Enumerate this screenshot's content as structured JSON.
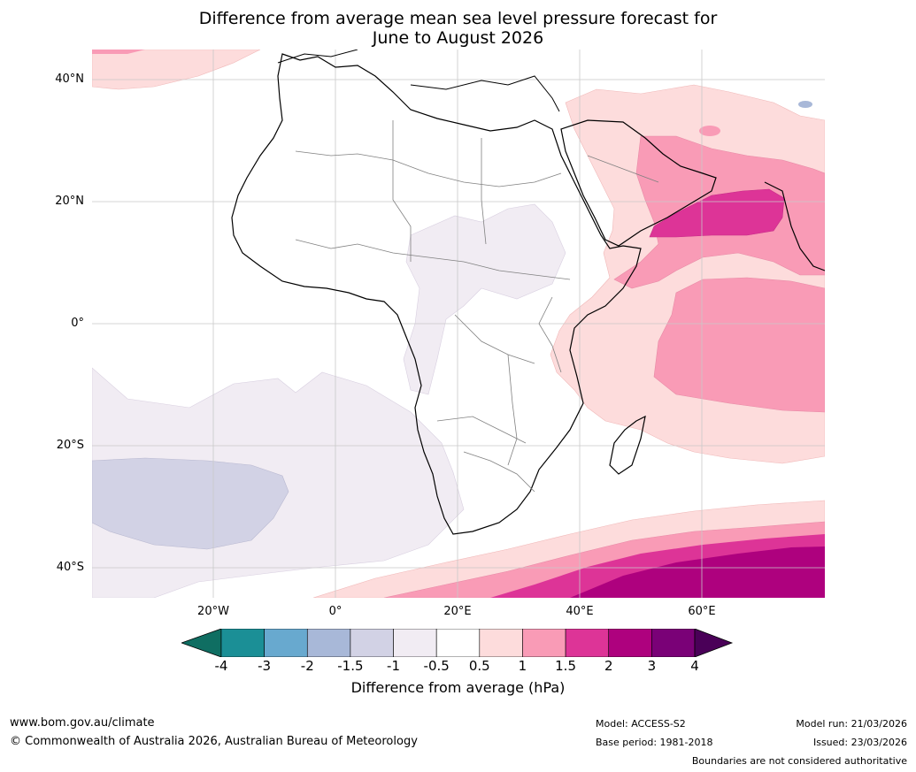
{
  "title": {
    "line1": "Difference from average mean sea level pressure forecast for",
    "line2": "June to August 2026"
  },
  "axes": {
    "latitudes": [
      "40°N",
      "20°N",
      "0°",
      "20°S",
      "40°S"
    ],
    "longitudes": [
      "20°W",
      "0°",
      "20°E",
      "40°E",
      "60°E"
    ]
  },
  "colorbar": {
    "ticks": [
      "-4",
      "-3",
      "-2",
      "-1.5",
      "-1",
      "-0.5",
      "0.5",
      "1",
      "1.5",
      "2",
      "3",
      "4"
    ],
    "low_extend_color": "#0f6e62",
    "high_extend_color": "#4a0058",
    "colors": [
      "#1b8f96",
      "#68a9cf",
      "#a8b8d8",
      "#d2d2e5",
      "#f1ecf3",
      "#ffffff",
      "#fddcdc",
      "#f99bb6",
      "#dd3497",
      "#ae017e",
      "#7a0177"
    ],
    "label": "Difference from average (hPa)"
  },
  "map_colors": {
    "land_outline": "#000000",
    "borders": "#808080",
    "gridlines": "#c8c8c8"
  },
  "footer": {
    "website": "www.bom.gov.au/climate",
    "copyright": "© Commonwealth of Australia 2026, Australian Bureau of Meteorology",
    "model": "Model: ACCESS-S2",
    "base_period": "Base period: 1981-2018",
    "model_run": "Model run: 21/03/2026",
    "issued": "Issued: 23/03/2026",
    "boundaries": "Boundaries are not considered authoritative"
  }
}
